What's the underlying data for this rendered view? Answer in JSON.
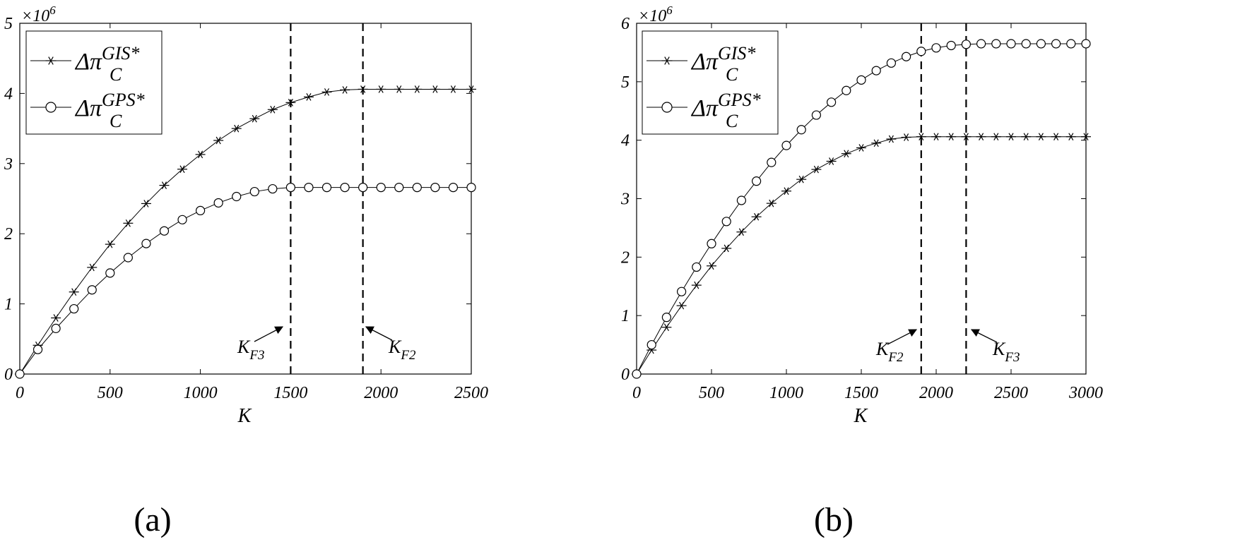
{
  "chart_data": [
    {
      "type": "line",
      "caption": "(a)",
      "xlabel": "K",
      "exponent_label": "×10",
      "exponent_sup": "6",
      "xlim": [
        0,
        2500
      ],
      "ylim": [
        0,
        5
      ],
      "xticks": [
        0,
        500,
        1000,
        1500,
        2000,
        2500
      ],
      "yticks": [
        0,
        1,
        2,
        3,
        4,
        5
      ],
      "legend": "top-left",
      "grid": false,
      "x": [
        0,
        100,
        200,
        300,
        400,
        500,
        600,
        700,
        800,
        900,
        1000,
        1100,
        1200,
        1300,
        1400,
        1500,
        1600,
        1700,
        1800,
        1900,
        2000,
        2100,
        2200,
        2300,
        2400,
        2500
      ],
      "series": [
        {
          "name": "Δπ",
          "name_sub": "C",
          "name_sup": "GIS*",
          "marker": "asterisk",
          "values": [
            0,
            0.41,
            0.8,
            1.17,
            1.52,
            1.85,
            2.15,
            2.43,
            2.69,
            2.92,
            3.13,
            3.33,
            3.5,
            3.64,
            3.77,
            3.87,
            3.95,
            4.02,
            4.05,
            4.06,
            4.06,
            4.06,
            4.06,
            4.06,
            4.06,
            4.06
          ]
        },
        {
          "name": "Δπ",
          "name_sub": "C",
          "name_sup": "GPS*",
          "marker": "circle",
          "values": [
            0,
            0.35,
            0.65,
            0.93,
            1.2,
            1.44,
            1.66,
            1.86,
            2.04,
            2.2,
            2.33,
            2.44,
            2.53,
            2.6,
            2.64,
            2.66,
            2.66,
            2.66,
            2.66,
            2.66,
            2.66,
            2.66,
            2.66,
            2.66,
            2.66,
            2.66
          ]
        }
      ],
      "vlines": [
        {
          "x": 1500,
          "label": "K",
          "label_sub": "F3",
          "side": "left"
        },
        {
          "x": 1900,
          "label": "K",
          "label_sub": "F2",
          "side": "right"
        }
      ]
    },
    {
      "type": "line",
      "caption": "(b)",
      "xlabel": "K",
      "exponent_label": "×10",
      "exponent_sup": "6",
      "xlim": [
        0,
        3000
      ],
      "ylim": [
        0,
        6
      ],
      "xticks": [
        0,
        500,
        1000,
        1500,
        2000,
        2500,
        3000
      ],
      "yticks": [
        0,
        1,
        2,
        3,
        4,
        5,
        6
      ],
      "legend": "top-left",
      "grid": false,
      "x": [
        0,
        100,
        200,
        300,
        400,
        500,
        600,
        700,
        800,
        900,
        1000,
        1100,
        1200,
        1300,
        1400,
        1500,
        1600,
        1700,
        1800,
        1900,
        2000,
        2100,
        2200,
        2300,
        2400,
        2500,
        2600,
        2700,
        2800,
        2900,
        3000
      ],
      "series": [
        {
          "name": "Δπ",
          "name_sub": "C",
          "name_sup": "GIS*",
          "marker": "asterisk",
          "values": [
            0,
            0.41,
            0.8,
            1.17,
            1.52,
            1.85,
            2.15,
            2.43,
            2.69,
            2.92,
            3.13,
            3.33,
            3.5,
            3.64,
            3.77,
            3.87,
            3.95,
            4.02,
            4.05,
            4.06,
            4.06,
            4.06,
            4.06,
            4.06,
            4.06,
            4.06,
            4.06,
            4.06,
            4.06,
            4.06,
            4.06
          ]
        },
        {
          "name": "Δπ",
          "name_sub": "C",
          "name_sup": "GPS*",
          "marker": "circle",
          "values": [
            0,
            0.5,
            0.97,
            1.41,
            1.83,
            2.23,
            2.61,
            2.97,
            3.3,
            3.62,
            3.91,
            4.18,
            4.43,
            4.65,
            4.85,
            5.03,
            5.19,
            5.32,
            5.43,
            5.52,
            5.58,
            5.62,
            5.64,
            5.65,
            5.65,
            5.65,
            5.65,
            5.65,
            5.65,
            5.65,
            5.65
          ]
        }
      ],
      "vlines": [
        {
          "x": 1900,
          "label": "K",
          "label_sub": "F2",
          "side": "left"
        },
        {
          "x": 2200,
          "label": "K",
          "label_sub": "F3",
          "side": "right"
        }
      ]
    }
  ]
}
